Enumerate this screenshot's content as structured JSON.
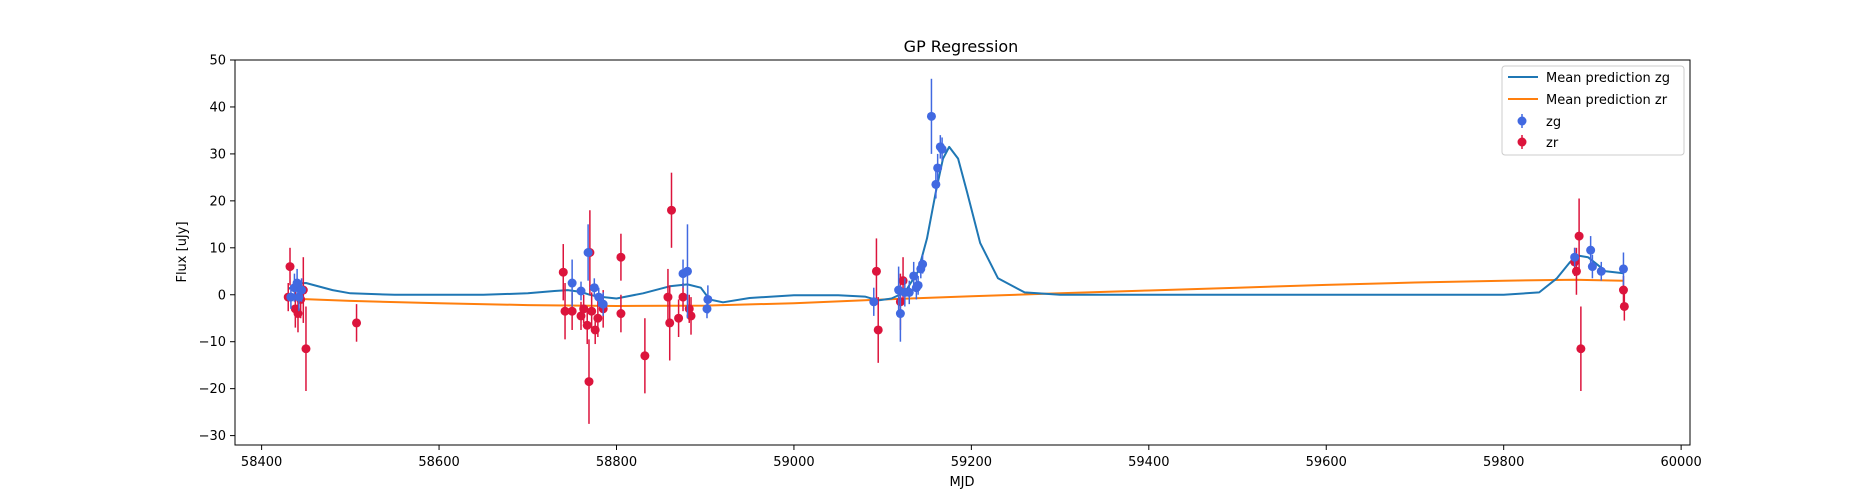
{
  "chart_data": {
    "type": "scatter",
    "title": "GP Regression",
    "xlabel": "MJD",
    "ylabel": "Flux [uJy]",
    "xlim": [
      58370,
      60010
    ],
    "ylim": [
      -32,
      50
    ],
    "xticks": [
      58400,
      58600,
      58800,
      59000,
      59200,
      59400,
      59600,
      59800,
      60000
    ],
    "yticks": [
      -30,
      -20,
      -10,
      0,
      10,
      20,
      30,
      40,
      50
    ],
    "grid": false,
    "legend_position": "top-right",
    "legend": {
      "mean_zg": "Mean prediction zg",
      "mean_zr": "Mean prediction zr",
      "zg": "zg",
      "zr": "zr"
    },
    "colors": {
      "mean_zg": "#1f77b4",
      "mean_zr": "#ff7f0e",
      "zg": "#4169e1",
      "zr": "#dc143c"
    },
    "lines": [
      {
        "name": "Mean prediction zg",
        "x": [
          58430,
          58440,
          58450,
          58460,
          58480,
          58500,
          58550,
          58600,
          58650,
          58700,
          58730,
          58745,
          58760,
          58770,
          58780,
          58800,
          58830,
          58860,
          58880,
          58895,
          58905,
          58920,
          58950,
          59000,
          59050,
          59080,
          59095,
          59110,
          59125,
          59140,
          59150,
          59160,
          59168,
          59175,
          59185,
          59195,
          59210,
          59230,
          59260,
          59300,
          59400,
          59500,
          59600,
          59700,
          59800,
          59840,
          59860,
          59875,
          59885,
          59895,
          59905,
          59915,
          59935
        ],
        "y": [
          1.2,
          2.4,
          2.5,
          2.0,
          1.0,
          0.3,
          0.0,
          0.0,
          0.0,
          0.3,
          0.8,
          1.0,
          0.6,
          0.0,
          -0.4,
          -0.8,
          0.3,
          1.8,
          2.2,
          1.5,
          -1.0,
          -1.6,
          -0.7,
          -0.1,
          -0.1,
          -0.4,
          -1.2,
          -0.8,
          0.5,
          5.0,
          12.0,
          22.0,
          29.0,
          31.5,
          29.0,
          22.0,
          11.0,
          3.5,
          0.5,
          0.0,
          0.0,
          0.0,
          0.0,
          0.0,
          0.0,
          0.5,
          3.5,
          7.0,
          8.3,
          8.0,
          6.5,
          5.0,
          4.6
        ]
      },
      {
        "name": "Mean prediction zr",
        "x": [
          58430,
          58500,
          58600,
          58700,
          58800,
          58900,
          59000,
          59100,
          59200,
          59300,
          59400,
          59500,
          59600,
          59700,
          59800,
          59880,
          59935
        ],
        "y": [
          -0.8,
          -1.3,
          -1.8,
          -2.2,
          -2.4,
          -2.3,
          -1.8,
          -1.0,
          -0.3,
          0.3,
          0.9,
          1.5,
          2.1,
          2.6,
          3.0,
          3.2,
          3.0
        ]
      }
    ],
    "series": [
      {
        "name": "zg",
        "points": [
          [
            58433,
            -0.5,
            2.5
          ],
          [
            58437,
            1.5,
            3
          ],
          [
            58440,
            2.5,
            3
          ],
          [
            58442,
            -0.5,
            3
          ],
          [
            58445,
            1.0,
            2.5
          ],
          [
            58750,
            2.5,
            5
          ],
          [
            58760,
            0.8,
            2
          ],
          [
            58768,
            9.0,
            6
          ],
          [
            58775,
            1.5,
            2
          ],
          [
            58780,
            -0.5,
            2
          ],
          [
            58785,
            -2.0,
            2.5
          ],
          [
            58875,
            4.5,
            3
          ],
          [
            58880,
            5.0,
            10
          ],
          [
            58902,
            -3.0,
            2
          ],
          [
            58903,
            -1.0,
            3
          ],
          [
            59090,
            -1.5,
            3
          ],
          [
            59118,
            1.0,
            5
          ],
          [
            59120,
            -4.0,
            6
          ],
          [
            59125,
            0.5,
            3
          ],
          [
            59130,
            0.5,
            2.5
          ],
          [
            59135,
            4.0,
            3
          ],
          [
            59138,
            1.5,
            2.5
          ],
          [
            59140,
            2.0,
            2
          ],
          [
            59143,
            5.5,
            2
          ],
          [
            59145,
            6.5,
            2
          ],
          [
            59155,
            38.0,
            8
          ],
          [
            59160,
            23.5,
            3
          ],
          [
            59162,
            27.0,
            3
          ],
          [
            59165,
            31.5,
            2.5
          ],
          [
            59167,
            31.0,
            2.5
          ],
          [
            59880,
            8.0,
            2
          ],
          [
            59898,
            9.5,
            3
          ],
          [
            59900,
            6.0,
            2.5
          ],
          [
            59910,
            5.0,
            2
          ],
          [
            59935,
            5.5,
            3.5
          ]
        ]
      },
      {
        "name": "zr",
        "points": [
          [
            58430,
            -0.5,
            3
          ],
          [
            58432,
            6.0,
            4
          ],
          [
            58438,
            -3.0,
            4
          ],
          [
            58441,
            -4.0,
            4
          ],
          [
            58444,
            -1.0,
            4
          ],
          [
            58447,
            1.0,
            7
          ],
          [
            58450,
            -11.5,
            9
          ],
          [
            58507,
            -6.0,
            4
          ],
          [
            58740,
            4.8,
            6
          ],
          [
            58742,
            -3.5,
            6
          ],
          [
            58750,
            -3.5,
            4
          ],
          [
            58760,
            -4.5,
            3
          ],
          [
            58763,
            -3.0,
            3
          ],
          [
            58767,
            -6.5,
            4
          ],
          [
            58769,
            -18.5,
            9
          ],
          [
            58770,
            9.0,
            9
          ],
          [
            58772,
            -3.5,
            4
          ],
          [
            58776,
            -7.5,
            3
          ],
          [
            58779,
            -5.0,
            4
          ],
          [
            58785,
            -3.0,
            4
          ],
          [
            58805,
            8.0,
            5
          ],
          [
            58805,
            -4.0,
            4
          ],
          [
            58832,
            -13.0,
            8
          ],
          [
            58858,
            -0.5,
            6
          ],
          [
            58860,
            -6.0,
            8
          ],
          [
            58862,
            18.0,
            8
          ],
          [
            58870,
            -5.0,
            4
          ],
          [
            58875,
            -0.5,
            3
          ],
          [
            58882,
            -3.0,
            3
          ],
          [
            58884,
            -4.5,
            4
          ],
          [
            59093,
            5.0,
            7
          ],
          [
            59095,
            -7.5,
            7
          ],
          [
            59120,
            -1.5,
            6
          ],
          [
            59123,
            3.0,
            5
          ],
          [
            59880,
            7.0,
            3
          ],
          [
            59882,
            5.0,
            5
          ],
          [
            59885,
            12.5,
            8
          ],
          [
            59887,
            -11.5,
            9
          ],
          [
            59935,
            1.0,
            3
          ],
          [
            59936,
            -2.5,
            3
          ]
        ]
      }
    ]
  }
}
